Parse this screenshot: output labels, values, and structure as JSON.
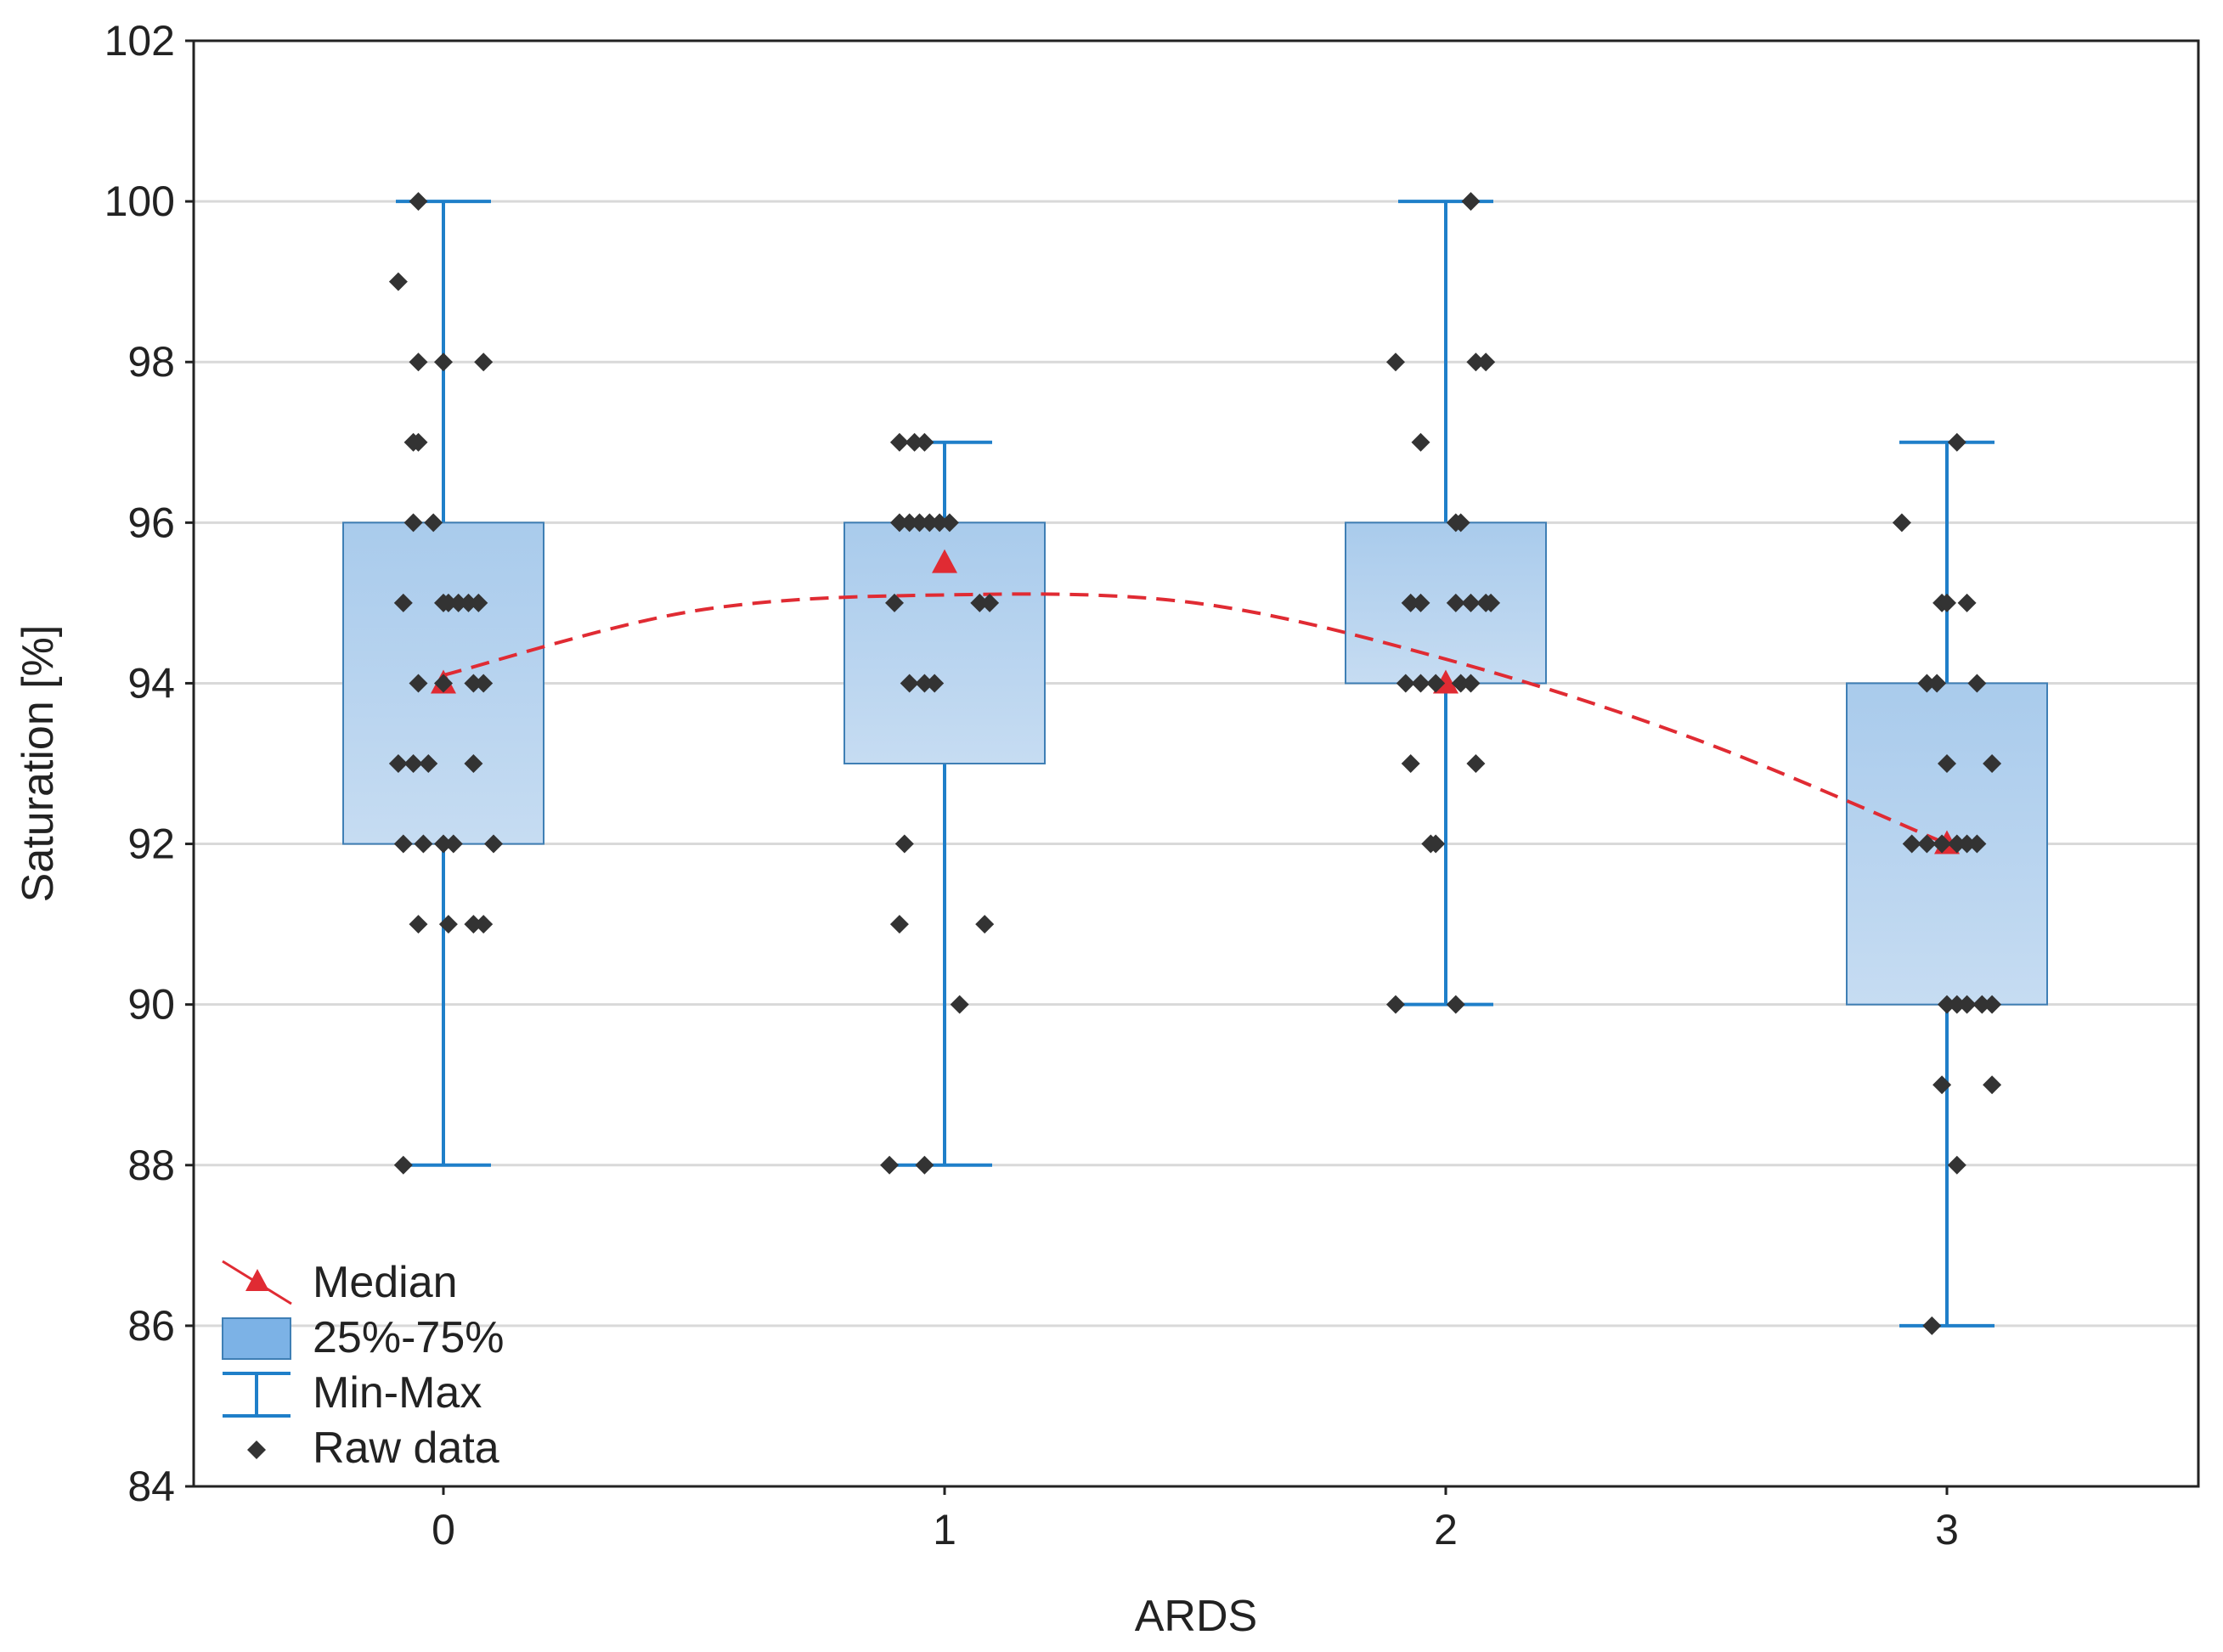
{
  "chart_data": {
    "type": "box",
    "title": "",
    "xlabel": "ARDS",
    "ylabel": "Saturation [%]",
    "ylim": [
      84,
      102
    ],
    "yticks": [
      84,
      86,
      88,
      90,
      92,
      94,
      96,
      98,
      100,
      102
    ],
    "categories": [
      "0",
      "1",
      "2",
      "3"
    ],
    "grid": "horizontal",
    "legend_position": "bottom-left",
    "legend": {
      "median": "Median",
      "box": "25%-75%",
      "whisker": "Min-Max",
      "raw": "Raw data"
    },
    "colors": {
      "box_fill": "#a9cbec",
      "box_fill_light": "#c6dcf2",
      "box_stroke": "#3f7fb5",
      "whisker": "#1f7fc9",
      "median": "#e02b33",
      "raw": "#333333",
      "grid": "#d9d9d9"
    },
    "boxes": [
      {
        "category": "0",
        "min": 88,
        "q1": 92,
        "median": 94,
        "q3": 96,
        "max": 100
      },
      {
        "category": "1",
        "min": 88,
        "q1": 93,
        "median": 95.5,
        "q3": 96,
        "max": 97
      },
      {
        "category": "2",
        "min": 90,
        "q1": 94,
        "median": 94,
        "q3": 96,
        "max": 100
      },
      {
        "category": "3",
        "min": 86,
        "q1": 90,
        "median": 92,
        "q3": 94,
        "max": 97
      }
    ],
    "median_fit": {
      "style": "dashed",
      "points": [
        [
          0,
          94.1
        ],
        [
          0.5,
          94.9
        ],
        [
          1,
          95.1
        ],
        [
          1.5,
          95.0
        ],
        [
          2,
          94.3
        ],
        [
          2.5,
          93.3
        ],
        [
          3,
          92.0
        ]
      ]
    },
    "raw_data": [
      {
        "x": -0.05,
        "y": 100
      },
      {
        "x": -0.09,
        "y": 99
      },
      {
        "x": -0.05,
        "y": 98
      },
      {
        "x": 0.0,
        "y": 98
      },
      {
        "x": 0.08,
        "y": 98
      },
      {
        "x": -0.06,
        "y": 97
      },
      {
        "x": -0.05,
        "y": 97
      },
      {
        "x": -0.06,
        "y": 96
      },
      {
        "x": -0.02,
        "y": 96
      },
      {
        "x": -0.08,
        "y": 95
      },
      {
        "x": 0.0,
        "y": 95
      },
      {
        "x": 0.01,
        "y": 95
      },
      {
        "x": 0.03,
        "y": 95
      },
      {
        "x": 0.05,
        "y": 95
      },
      {
        "x": 0.07,
        "y": 95
      },
      {
        "x": -0.05,
        "y": 94
      },
      {
        "x": 0.0,
        "y": 94
      },
      {
        "x": 0.06,
        "y": 94
      },
      {
        "x": 0.08,
        "y": 94
      },
      {
        "x": -0.09,
        "y": 93
      },
      {
        "x": -0.06,
        "y": 93
      },
      {
        "x": -0.03,
        "y": 93
      },
      {
        "x": 0.06,
        "y": 93
      },
      {
        "x": -0.08,
        "y": 92
      },
      {
        "x": -0.04,
        "y": 92
      },
      {
        "x": 0.0,
        "y": 92
      },
      {
        "x": 0.02,
        "y": 92
      },
      {
        "x": 0.1,
        "y": 92
      },
      {
        "x": -0.05,
        "y": 91
      },
      {
        "x": 0.01,
        "y": 91
      },
      {
        "x": 0.06,
        "y": 91
      },
      {
        "x": 0.08,
        "y": 91
      },
      {
        "x": -0.08,
        "y": 88
      },
      {
        "x": 0.91,
        "y": 97
      },
      {
        "x": 0.94,
        "y": 97
      },
      {
        "x": 0.96,
        "y": 97
      },
      {
        "x": 0.91,
        "y": 96
      },
      {
        "x": 0.93,
        "y": 96
      },
      {
        "x": 0.95,
        "y": 96
      },
      {
        "x": 0.97,
        "y": 96
      },
      {
        "x": 0.99,
        "y": 96
      },
      {
        "x": 1.01,
        "y": 96
      },
      {
        "x": 0.9,
        "y": 95
      },
      {
        "x": 1.07,
        "y": 95
      },
      {
        "x": 1.09,
        "y": 95
      },
      {
        "x": 0.93,
        "y": 94
      },
      {
        "x": 0.96,
        "y": 94
      },
      {
        "x": 0.98,
        "y": 94
      },
      {
        "x": 0.92,
        "y": 92
      },
      {
        "x": 0.91,
        "y": 91
      },
      {
        "x": 1.08,
        "y": 91
      },
      {
        "x": 1.03,
        "y": 90
      },
      {
        "x": 0.89,
        "y": 88
      },
      {
        "x": 0.96,
        "y": 88
      },
      {
        "x": 2.05,
        "y": 100
      },
      {
        "x": 1.9,
        "y": 98
      },
      {
        "x": 2.06,
        "y": 98
      },
      {
        "x": 2.08,
        "y": 98
      },
      {
        "x": 1.95,
        "y": 97
      },
      {
        "x": 2.02,
        "y": 96
      },
      {
        "x": 2.03,
        "y": 96
      },
      {
        "x": 1.93,
        "y": 95
      },
      {
        "x": 1.95,
        "y": 95
      },
      {
        "x": 2.02,
        "y": 95
      },
      {
        "x": 2.05,
        "y": 95
      },
      {
        "x": 2.08,
        "y": 95
      },
      {
        "x": 2.09,
        "y": 95
      },
      {
        "x": 1.92,
        "y": 94
      },
      {
        "x": 1.95,
        "y": 94
      },
      {
        "x": 1.98,
        "y": 94
      },
      {
        "x": 2.03,
        "y": 94
      },
      {
        "x": 2.05,
        "y": 94
      },
      {
        "x": 1.93,
        "y": 93
      },
      {
        "x": 2.06,
        "y": 93
      },
      {
        "x": 1.97,
        "y": 92
      },
      {
        "x": 1.98,
        "y": 92
      },
      {
        "x": 1.9,
        "y": 90
      },
      {
        "x": 2.02,
        "y": 90
      },
      {
        "x": 3.02,
        "y": 97
      },
      {
        "x": 2.91,
        "y": 96
      },
      {
        "x": 2.99,
        "y": 95
      },
      {
        "x": 3.0,
        "y": 95
      },
      {
        "x": 3.04,
        "y": 95
      },
      {
        "x": 2.96,
        "y": 94
      },
      {
        "x": 2.98,
        "y": 94
      },
      {
        "x": 3.06,
        "y": 94
      },
      {
        "x": 3.0,
        "y": 93
      },
      {
        "x": 3.09,
        "y": 93
      },
      {
        "x": 2.93,
        "y": 92
      },
      {
        "x": 2.96,
        "y": 92
      },
      {
        "x": 2.99,
        "y": 92
      },
      {
        "x": 3.02,
        "y": 92
      },
      {
        "x": 3.04,
        "y": 92
      },
      {
        "x": 3.06,
        "y": 92
      },
      {
        "x": 3.0,
        "y": 90
      },
      {
        "x": 3.02,
        "y": 90
      },
      {
        "x": 3.04,
        "y": 90
      },
      {
        "x": 3.07,
        "y": 90
      },
      {
        "x": 3.09,
        "y": 90
      },
      {
        "x": 2.99,
        "y": 89
      },
      {
        "x": 3.09,
        "y": 89
      },
      {
        "x": 3.02,
        "y": 88
      },
      {
        "x": 2.97,
        "y": 86
      }
    ]
  }
}
